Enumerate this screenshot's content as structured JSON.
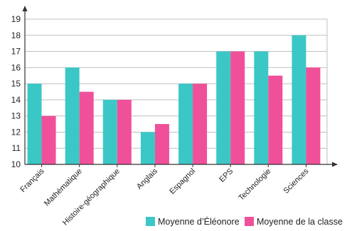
{
  "chart_data": {
    "type": "bar",
    "title": "",
    "xlabel": "",
    "ylabel": "",
    "categories": [
      "Français",
      "Mathématique",
      "Histoire-géographique",
      "Anglais",
      "Espagnol",
      "EPS",
      "Technologie",
      "Sciences"
    ],
    "series": [
      {
        "name": "Moyenne d’Éléonore",
        "color": "#3cc7c7",
        "values": [
          15,
          16,
          14,
          12,
          15,
          17,
          17,
          18
        ]
      },
      {
        "name": "Moyenne de la classe",
        "color": "#f0509a",
        "values": [
          13,
          14.5,
          14,
          12.5,
          15,
          17,
          15.5,
          16
        ]
      }
    ],
    "ylim": [
      10,
      19
    ],
    "yticks": [
      10,
      11,
      12,
      13,
      14,
      15,
      16,
      17,
      18,
      19
    ],
    "grid": true,
    "legend_position": "bottom-right"
  }
}
